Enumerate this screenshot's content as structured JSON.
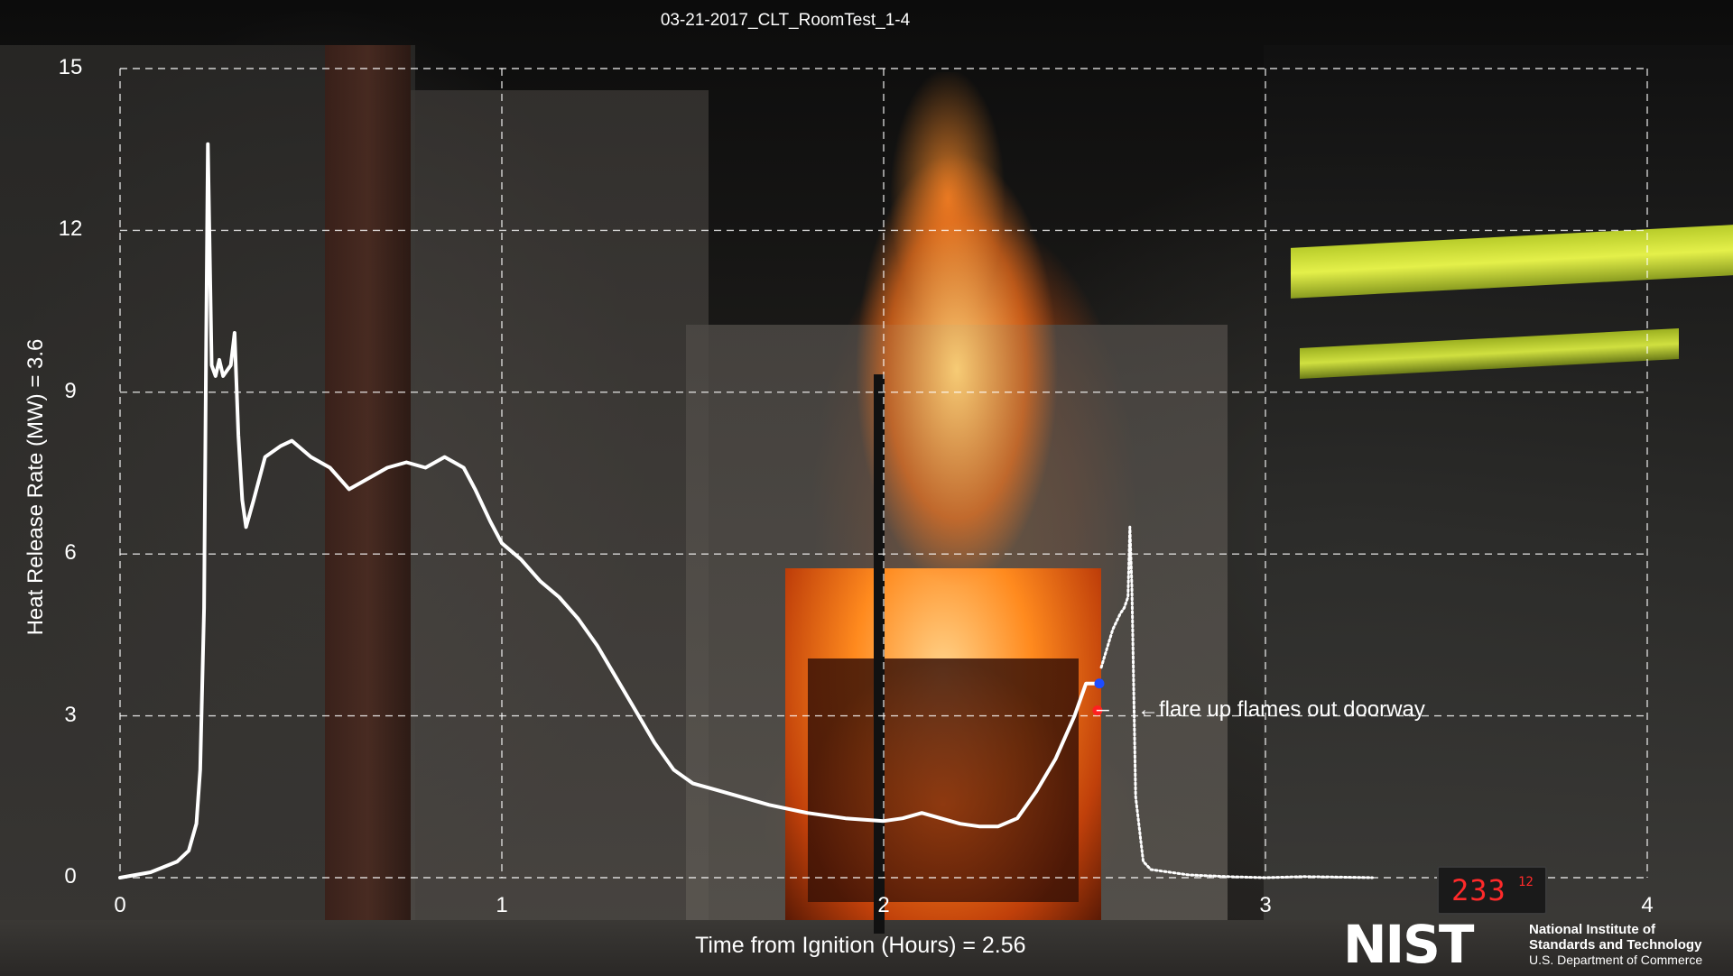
{
  "chart_data": {
    "type": "line",
    "title": "03-21-2017_CLT_RoomTest_1-4",
    "xlabel": "Time from Ignition (Hours) = 2.56",
    "ylabel": "Heat Release Rate  (MW)  = 3.6",
    "xlim": [
      0,
      4
    ],
    "ylim": [
      0,
      15
    ],
    "x_ticks": [
      "0",
      "1",
      "2",
      "3",
      "4"
    ],
    "y_ticks": [
      "0",
      "3",
      "6",
      "9",
      "12",
      "15"
    ],
    "grid": true,
    "grid_style": "dashed",
    "line_color": "#ffffff",
    "series": [
      {
        "values_x": [
          0,
          0.08,
          0.15,
          0.18,
          0.2,
          0.21,
          0.22,
          0.225,
          0.23,
          0.24,
          0.25,
          0.26,
          0.27,
          0.28,
          0.29,
          0.3,
          0.31,
          0.32,
          0.33,
          0.35,
          0.38,
          0.42,
          0.45,
          0.5,
          0.55,
          0.6,
          0.65,
          0.7,
          0.75,
          0.8,
          0.85,
          0.9,
          0.93,
          0.97,
          1.0,
          1.05,
          1.1,
          1.15,
          1.2,
          1.25,
          1.3,
          1.35,
          1.4,
          1.45,
          1.5,
          1.55,
          1.6,
          1.7,
          1.8,
          1.9,
          2.0,
          2.05,
          2.1,
          2.15,
          2.2,
          2.25,
          2.3,
          2.35,
          2.4,
          2.45,
          2.5,
          2.53,
          2.56
        ],
        "values_y": [
          0,
          0.1,
          0.3,
          0.5,
          1.0,
          2.0,
          5.0,
          9.5,
          13.6,
          9.5,
          9.3,
          9.6,
          9.3,
          9.4,
          9.5,
          10.1,
          8.2,
          7.0,
          6.5,
          7.0,
          7.8,
          8.0,
          8.1,
          7.8,
          7.6,
          7.2,
          7.4,
          7.6,
          7.7,
          7.6,
          7.8,
          7.6,
          7.2,
          6.6,
          6.2,
          5.9,
          5.5,
          5.2,
          4.8,
          4.3,
          3.7,
          3.1,
          2.5,
          2.0,
          1.75,
          1.65,
          1.55,
          1.35,
          1.2,
          1.1,
          1.05,
          1.1,
          1.2,
          1.1,
          1.0,
          0.95,
          0.95,
          1.1,
          1.6,
          2.2,
          3.0,
          3.6,
          3.6
        ]
      },
      {
        "name_hint": "",
        "values_x": [
          2.57,
          2.6,
          2.62,
          2.63,
          2.64,
          2.645,
          2.65,
          2.66,
          2.68,
          2.7,
          2.75,
          2.8,
          2.9,
          3.0,
          3.1,
          3.2,
          3.28
        ],
        "values_y": [
          3.9,
          4.6,
          4.9,
          5.0,
          5.2,
          6.5,
          5.4,
          1.5,
          0.3,
          0.15,
          0.1,
          0.05,
          0.02,
          0.0,
          0.02,
          0.01,
          0.0
        ]
      }
    ],
    "markers": [
      {
        "x": 2.565,
        "y": 3.6,
        "color": "#1e4cff"
      },
      {
        "x": 2.56,
        "y": 3.1,
        "color": "#ff2020"
      }
    ],
    "annotation": {
      "text": "←flare up flames out doorway",
      "x": 2.6,
      "y": 3.1
    }
  },
  "timer_display": {
    "main": "233",
    "sub": "12"
  },
  "logo": {
    "wordmark": "NIST",
    "line1": "National Institute of",
    "line2": "Standards and Technology",
    "line3": "U.S. Department of Commerce"
  }
}
